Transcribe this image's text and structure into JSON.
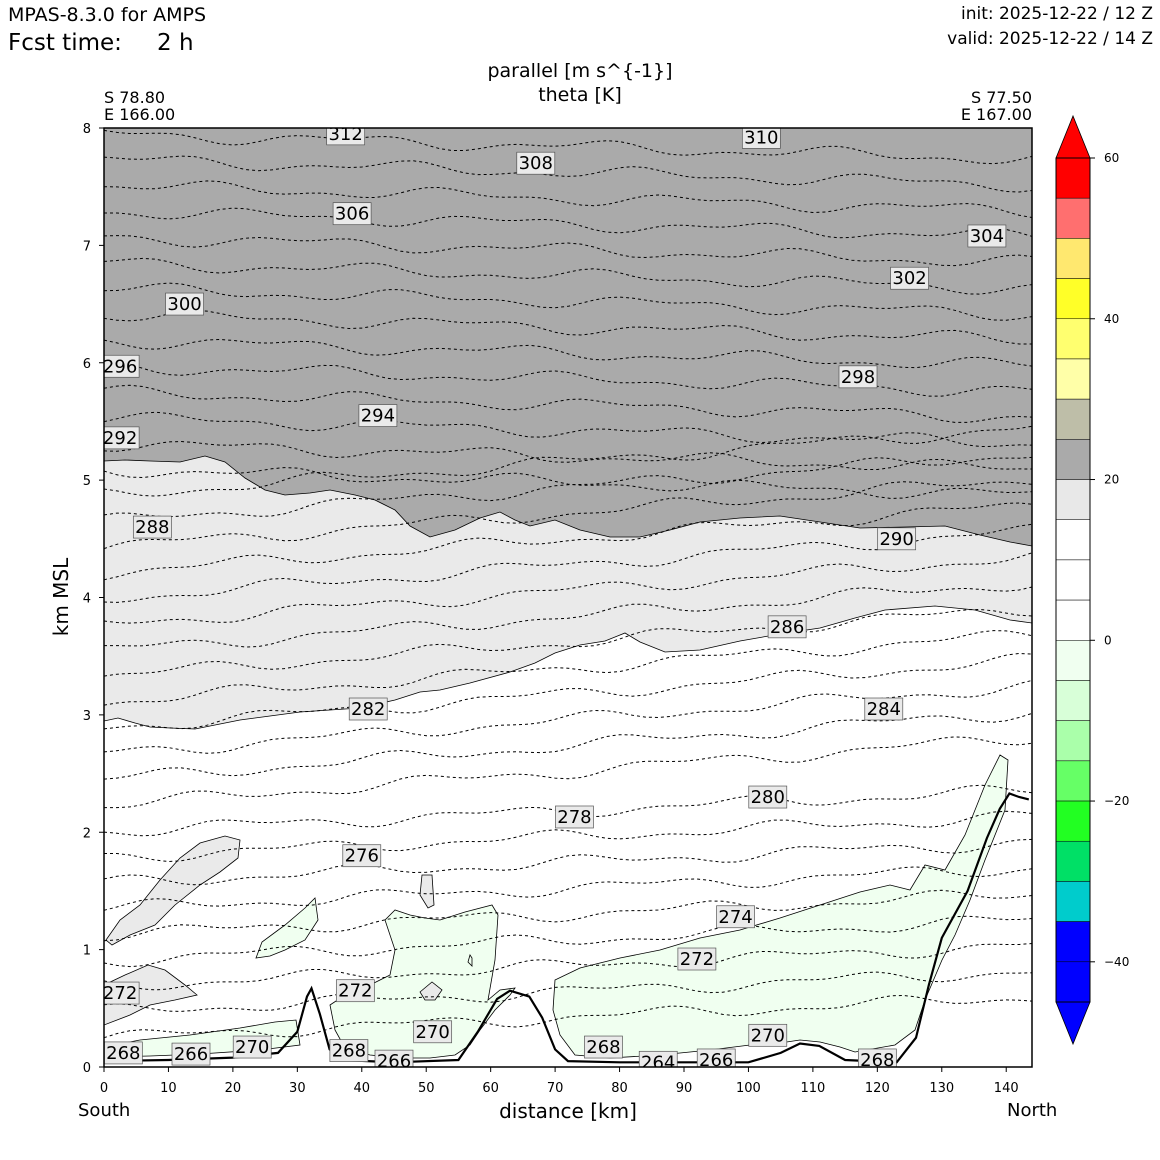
{
  "header": {
    "model": "MPAS-8.3.0 for AMPS",
    "fcst_label": "Fcst time:",
    "fcst_value": "2 h",
    "init": "init: 2025-12-22 / 12 Z",
    "valid": "valid: 2025-12-22 / 14 Z"
  },
  "section": {
    "start_lat": "S 78.80",
    "start_lon": "E 166.00",
    "end_lat": "S 77.50",
    "end_lon": "E 167.00",
    "left_label": "South",
    "right_label": "North"
  },
  "chart_data": {
    "type": "contour",
    "title": "parallel [m s^{-1}]",
    "subtitle": "theta [K]",
    "xlabel": "distance [km]",
    "ylabel": "km MSL",
    "xlim": [
      0,
      144
    ],
    "ylim": [
      0,
      8
    ],
    "xticks": [
      0,
      10,
      20,
      30,
      40,
      50,
      60,
      70,
      80,
      90,
      100,
      110,
      120,
      130,
      140
    ],
    "yticks": [
      0,
      1,
      2,
      3,
      4,
      5,
      6,
      7,
      8
    ],
    "theta_contour_labels": [
      {
        "value": "312",
        "x": 37.5,
        "y": 7.95
      },
      {
        "value": "310",
        "x": 102,
        "y": 7.92
      },
      {
        "value": "308",
        "x": 67,
        "y": 7.7
      },
      {
        "value": "306",
        "x": 38.5,
        "y": 7.27
      },
      {
        "value": "304",
        "x": 137,
        "y": 7.08
      },
      {
        "value": "302",
        "x": 125,
        "y": 6.72
      },
      {
        "value": "300",
        "x": 12.5,
        "y": 6.5
      },
      {
        "value": "296",
        "x": 2.5,
        "y": 5.97
      },
      {
        "value": "298",
        "x": 117,
        "y": 5.88
      },
      {
        "value": "294",
        "x": 42.5,
        "y": 5.55
      },
      {
        "value": "292",
        "x": 2.5,
        "y": 5.36
      },
      {
        "value": "288",
        "x": 7.5,
        "y": 4.6
      },
      {
        "value": "290",
        "x": 123,
        "y": 4.5
      },
      {
        "value": "286",
        "x": 106,
        "y": 3.75
      },
      {
        "value": "284",
        "x": 121,
        "y": 3.05
      },
      {
        "value": "282",
        "x": 41,
        "y": 3.05
      },
      {
        "value": "280",
        "x": 103,
        "y": 2.3
      },
      {
        "value": "278",
        "x": 73,
        "y": 2.13
      },
      {
        "value": "276",
        "x": 40,
        "y": 1.8
      },
      {
        "value": "274",
        "x": 98,
        "y": 1.28
      },
      {
        "value": "272",
        "x": 92,
        "y": 0.92
      },
      {
        "value": "272",
        "x": 39,
        "y": 0.65
      },
      {
        "value": "272",
        "x": 2.5,
        "y": 0.63
      },
      {
        "value": "270",
        "x": 103,
        "y": 0.27
      },
      {
        "value": "270",
        "x": 51,
        "y": 0.3
      },
      {
        "value": "270",
        "x": 23,
        "y": 0.17
      },
      {
        "value": "268",
        "x": 3,
        "y": 0.12
      },
      {
        "value": "266",
        "x": 13.5,
        "y": 0.11
      },
      {
        "value": "268",
        "x": 38,
        "y": 0.14
      },
      {
        "value": "266",
        "x": 45,
        "y": 0.05
      },
      {
        "value": "268",
        "x": 77.5,
        "y": 0.17
      },
      {
        "value": "264",
        "x": 86,
        "y": 0.04
      },
      {
        "value": "266",
        "x": 95,
        "y": 0.06
      },
      {
        "value": "268",
        "x": 120,
        "y": 0.06
      }
    ],
    "terrain": [
      [
        0,
        0.05
      ],
      [
        10,
        0.06
      ],
      [
        20,
        0.08
      ],
      [
        27,
        0.12
      ],
      [
        30,
        0.3
      ],
      [
        31.5,
        0.6
      ],
      [
        32.2,
        0.67
      ],
      [
        33.5,
        0.45
      ],
      [
        35,
        0.15
      ],
      [
        37,
        0.06
      ],
      [
        45,
        0.04
      ],
      [
        55,
        0.06
      ],
      [
        58,
        0.3
      ],
      [
        61,
        0.58
      ],
      [
        63,
        0.65
      ],
      [
        66,
        0.6
      ],
      [
        68,
        0.42
      ],
      [
        70,
        0.15
      ],
      [
        72,
        0.05
      ],
      [
        80,
        0.04
      ],
      [
        100,
        0.04
      ],
      [
        105,
        0.12
      ],
      [
        108,
        0.2
      ],
      [
        111,
        0.18
      ],
      [
        115,
        0.06
      ],
      [
        123,
        0.04
      ],
      [
        126,
        0.25
      ],
      [
        128,
        0.7
      ],
      [
        130,
        1.1
      ],
      [
        134,
        1.5
      ],
      [
        137,
        1.95
      ],
      [
        139,
        2.2
      ],
      [
        140.5,
        2.33
      ],
      [
        142,
        2.3
      ],
      [
        143.5,
        2.28
      ]
    ],
    "colorbar": {
      "ticks": [
        60,
        40,
        20,
        0,
        -20,
        -40
      ],
      "bins": [
        {
          "from": 55,
          "to": 60,
          "color": "#ff0000"
        },
        {
          "from": 50,
          "to": 55,
          "color": "#ff6f6f"
        },
        {
          "from": 45,
          "to": 50,
          "color": "#ffe86f"
        },
        {
          "from": 40,
          "to": 45,
          "color": "#ffff28"
        },
        {
          "from": 35,
          "to": 40,
          "color": "#ffff6f"
        },
        {
          "from": 30,
          "to": 35,
          "color": "#ffffa8"
        },
        {
          "from": 25,
          "to": 30,
          "color": "#bebea8"
        },
        {
          "from": 20,
          "to": 25,
          "color": "#aaaaaa"
        },
        {
          "from": 15,
          "to": 20,
          "color": "#e8e8e8"
        },
        {
          "from": 10,
          "to": 15,
          "color": "#ffffff"
        },
        {
          "from": 5,
          "to": 10,
          "color": "#ffffff"
        },
        {
          "from": 0,
          "to": 5,
          "color": "#ffffff"
        },
        {
          "from": -5,
          "to": 0,
          "color": "#f0fff0"
        },
        {
          "from": -10,
          "to": -5,
          "color": "#d8ffd8"
        },
        {
          "from": -15,
          "to": -10,
          "color": "#aaffaa"
        },
        {
          "from": -20,
          "to": -15,
          "color": "#66ff66"
        },
        {
          "from": -25,
          "to": -20,
          "color": "#22ff22"
        },
        {
          "from": -30,
          "to": -25,
          "color": "#00e066"
        },
        {
          "from": -35,
          "to": -30,
          "color": "#00cccc"
        },
        {
          "from": -40,
          "to": -35,
          "color": "#0000ff"
        },
        {
          "from": -45,
          "to": -40,
          "color": "#0000ff"
        }
      ],
      "over_color": "#ff0000",
      "under_color": "#0000ff"
    }
  }
}
